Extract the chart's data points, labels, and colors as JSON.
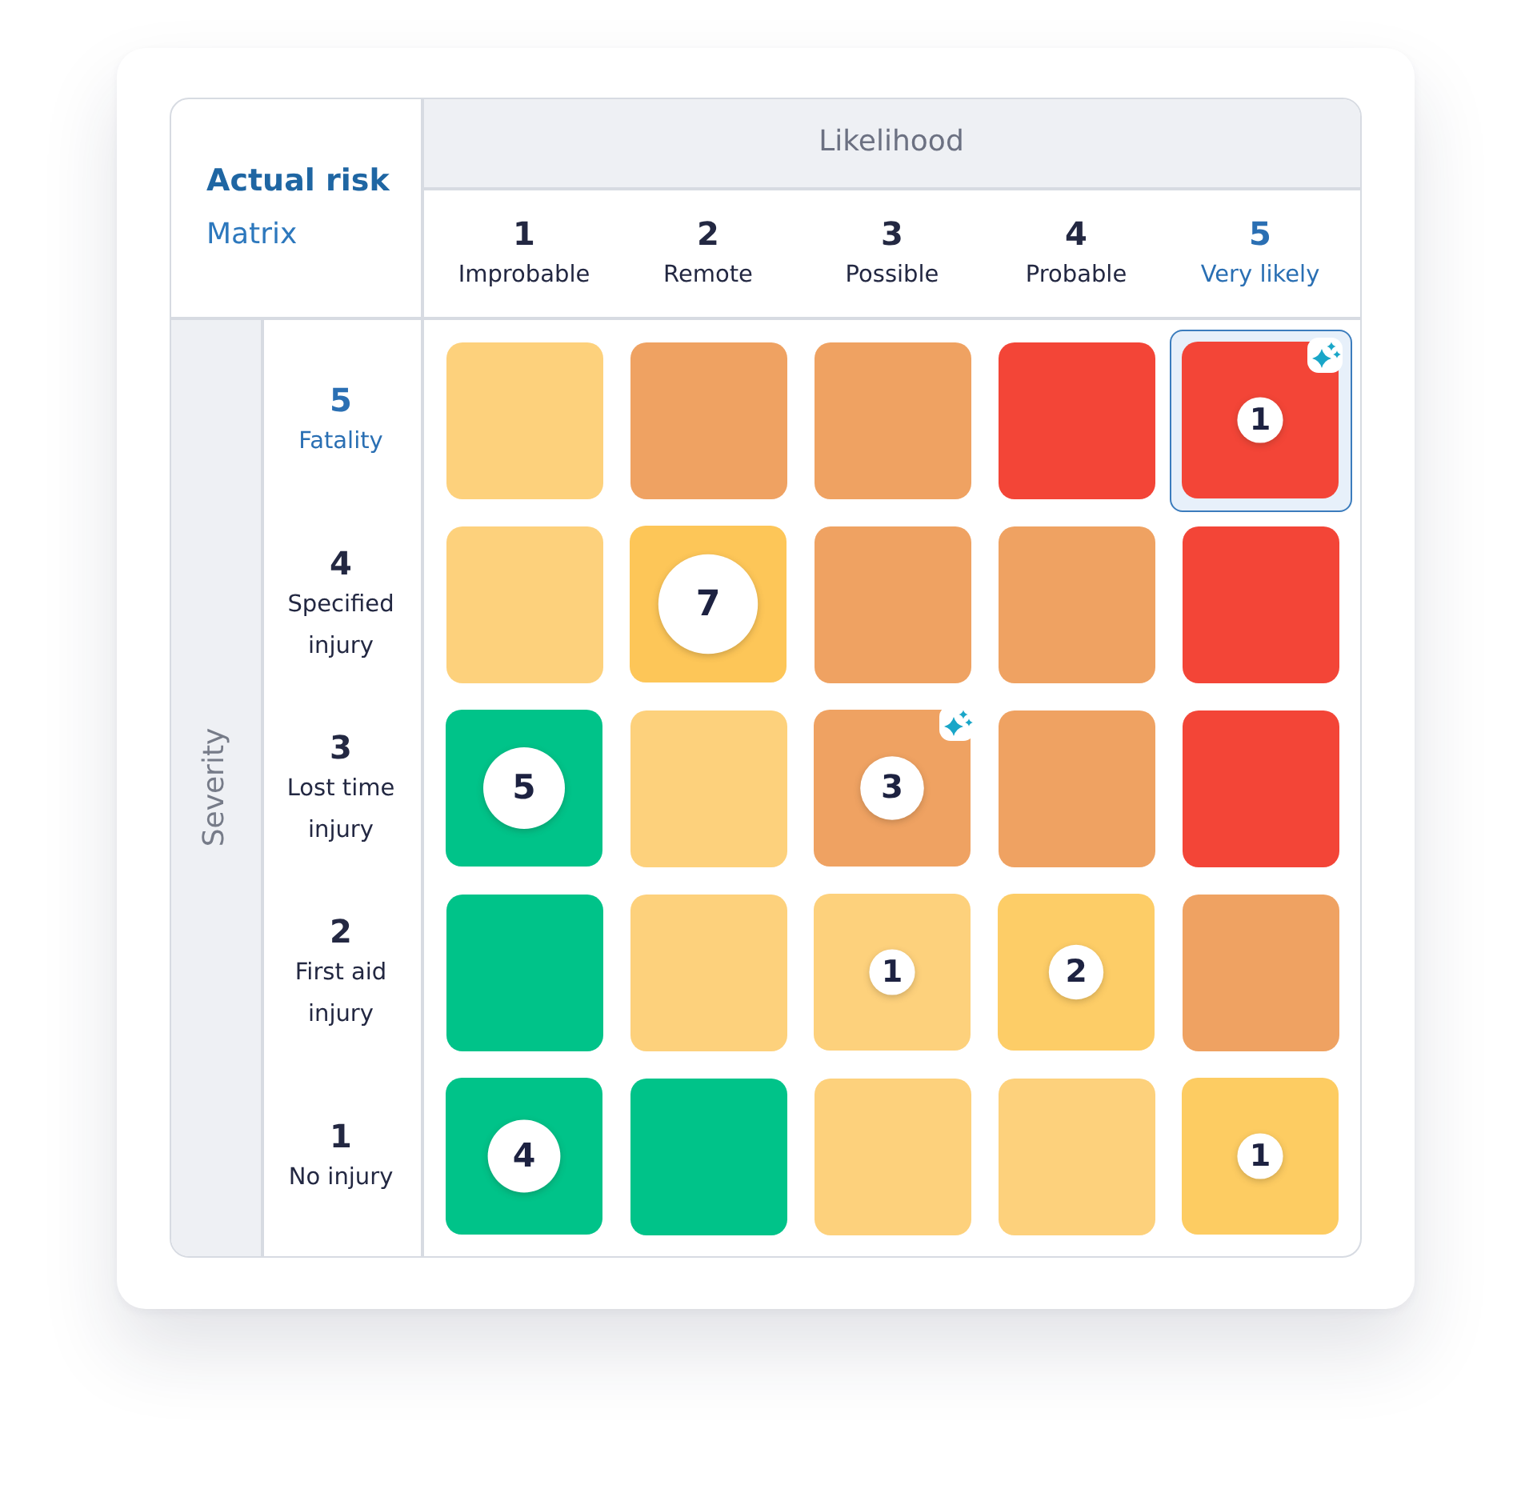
{
  "chart_data": {
    "type": "heatmap",
    "title": "Actual risk",
    "subtitle": "Matrix",
    "xlabel": "Likelihood",
    "ylabel": "Severity",
    "categories": [
      "1 Improbable",
      "2 Remote",
      "3 Possible",
      "4 Probable",
      "5 Very likely"
    ],
    "y_categories": [
      "5 Fatality",
      "4 Specified injury",
      "3 Lost time injury",
      "2 First aid injury",
      "1 No injury"
    ],
    "cells": [
      [
        null,
        null,
        null,
        null,
        1
      ],
      [
        null,
        7,
        null,
        null,
        null
      ],
      [
        5,
        null,
        3,
        null,
        null
      ],
      [
        null,
        null,
        1,
        2,
        null
      ],
      [
        4,
        null,
        null,
        null,
        1
      ]
    ],
    "colors": [
      [
        "#fdd17c",
        "#efa262",
        "#efa262",
        "#f34537",
        "#f34537"
      ],
      [
        "#fdd17c",
        "#fdc658",
        "#efa262",
        "#efa262",
        "#f34537"
      ],
      [
        "#00c389",
        "#fdd17c",
        "#efa262",
        "#efa262",
        "#f34537"
      ],
      [
        "#00c389",
        "#fdd17c",
        "#fdd17c",
        "#fdcd67",
        "#efa262"
      ],
      [
        "#00c389",
        "#00c389",
        "#fdd17c",
        "#fdd17c",
        "#fdcc62"
      ]
    ],
    "data_labels": true
  }
}
